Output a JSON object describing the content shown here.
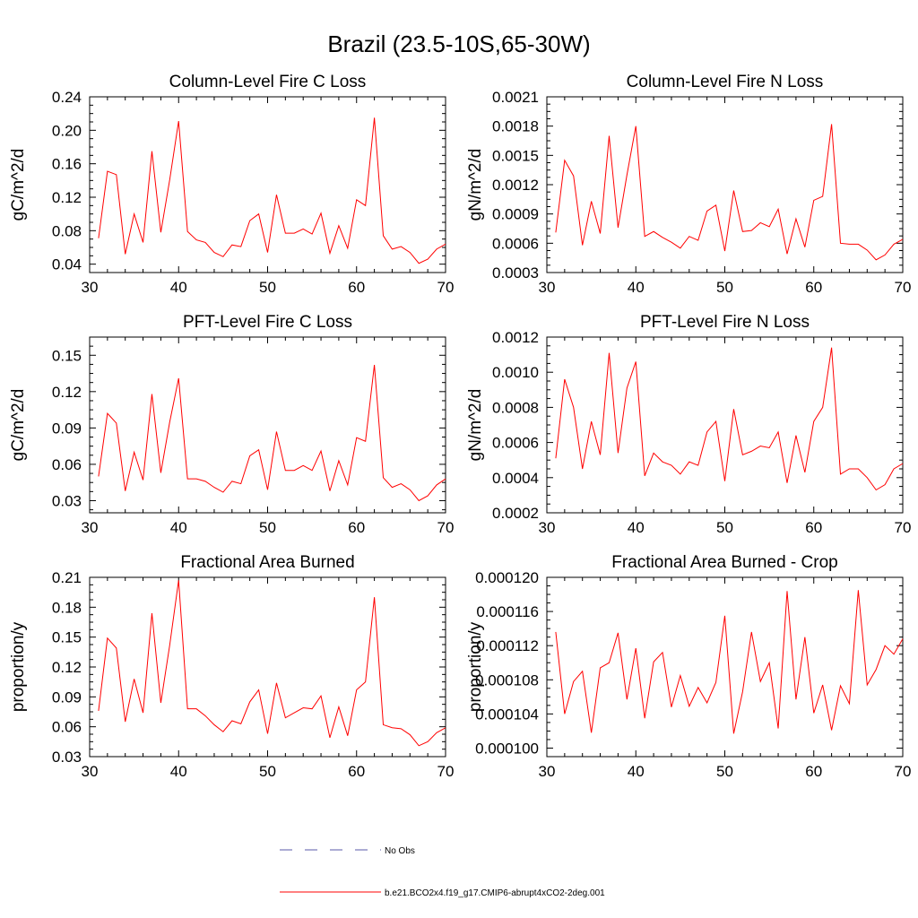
{
  "figure_title": "Brazil (23.5-10S,65-30W)",
  "colors": {
    "model": "#ff0000",
    "obs": "#5a5aa8",
    "axis": "#000000"
  },
  "legend": {
    "obs_label": "No Obs",
    "model_label": "b.e21.BCO2x4.f19_g17.CMIP6-abrupt4xCO2-2deg.001"
  },
  "chart_data": [
    {
      "type": "line",
      "title": "Column-Level Fire C Loss",
      "xlabel": "",
      "ylabel": "gC/m^2/d",
      "xlim": [
        30,
        70
      ],
      "ylim": [
        0.03,
        0.24
      ],
      "xticks": [
        30,
        40,
        50,
        60,
        70
      ],
      "yticks": [
        0.04,
        0.08,
        0.12,
        0.16,
        0.2,
        0.24
      ],
      "ytick_labels": [
        "0.04",
        "0.08",
        "0.12",
        "0.16",
        "0.20",
        "0.24"
      ],
      "series": [
        {
          "x": [
            31,
            32,
            33,
            34,
            35,
            36,
            37,
            38,
            39,
            40,
            41,
            42,
            43,
            44,
            45,
            46,
            47,
            48,
            49,
            50,
            51,
            52,
            53,
            54,
            55,
            56,
            57,
            58,
            59,
            60,
            61,
            62,
            63,
            64,
            65,
            66,
            67,
            68,
            69,
            70
          ],
          "values": [
            0.071,
            0.151,
            0.147,
            0.052,
            0.1,
            0.066,
            0.175,
            0.078,
            0.141,
            0.211,
            0.079,
            0.069,
            0.066,
            0.054,
            0.049,
            0.063,
            0.061,
            0.092,
            0.1,
            0.054,
            0.123,
            0.077,
            0.077,
            0.082,
            0.076,
            0.101,
            0.053,
            0.086,
            0.059,
            0.117,
            0.11,
            0.215,
            0.074,
            0.058,
            0.061,
            0.054,
            0.041,
            0.046,
            0.058,
            0.064
          ]
        }
      ]
    },
    {
      "type": "line",
      "title": "Column-Level Fire N Loss",
      "xlabel": "",
      "ylabel": "gN/m^2/d",
      "xlim": [
        30,
        70
      ],
      "ylim": [
        0.0003,
        0.0021
      ],
      "xticks": [
        30,
        40,
        50,
        60,
        70
      ],
      "yticks": [
        0.0003,
        0.0006,
        0.0009,
        0.0012,
        0.0015,
        0.0018,
        0.0021
      ],
      "ytick_labels": [
        "0.0003",
        "0.0006",
        "0.0009",
        "0.0012",
        "0.0015",
        "0.0018",
        "0.0021"
      ],
      "series": [
        {
          "x": [
            31,
            32,
            33,
            34,
            35,
            36,
            37,
            38,
            39,
            40,
            41,
            42,
            43,
            44,
            45,
            46,
            47,
            48,
            49,
            50,
            51,
            52,
            53,
            54,
            55,
            56,
            57,
            58,
            59,
            60,
            61,
            62,
            63,
            64,
            65,
            66,
            67,
            68,
            69,
            70
          ],
          "values": [
            0.00071,
            0.00145,
            0.00129,
            0.00058,
            0.00103,
            0.0007,
            0.0017,
            0.00076,
            0.0013,
            0.0018,
            0.00067,
            0.00072,
            0.00066,
            0.00061,
            0.00055,
            0.00067,
            0.00063,
            0.00093,
            0.00099,
            0.00052,
            0.00114,
            0.00072,
            0.00073,
            0.00081,
            0.00077,
            0.00095,
            0.00049,
            0.00085,
            0.00056,
            0.00104,
            0.00108,
            0.00182,
            0.0006,
            0.00059,
            0.00059,
            0.00053,
            0.00043,
            0.00048,
            0.00059,
            0.00064
          ]
        }
      ]
    },
    {
      "type": "line",
      "title": "PFT-Level Fire C Loss",
      "xlabel": "",
      "ylabel": "gC/m^2/d",
      "xlim": [
        30,
        70
      ],
      "ylim": [
        0.02,
        0.165
      ],
      "xticks": [
        30,
        40,
        50,
        60,
        70
      ],
      "yticks": [
        0.03,
        0.06,
        0.09,
        0.12,
        0.15
      ],
      "ytick_labels": [
        "0.03",
        "0.06",
        "0.09",
        "0.12",
        "0.15"
      ],
      "series": [
        {
          "x": [
            31,
            32,
            33,
            34,
            35,
            36,
            37,
            38,
            39,
            40,
            41,
            42,
            43,
            44,
            45,
            46,
            47,
            48,
            49,
            50,
            51,
            52,
            53,
            54,
            55,
            56,
            57,
            58,
            59,
            60,
            61,
            62,
            63,
            64,
            65,
            66,
            67,
            68,
            69,
            70
          ],
          "values": [
            0.05,
            0.102,
            0.094,
            0.038,
            0.07,
            0.047,
            0.118,
            0.053,
            0.095,
            0.131,
            0.048,
            0.048,
            0.046,
            0.041,
            0.037,
            0.046,
            0.044,
            0.067,
            0.072,
            0.039,
            0.087,
            0.055,
            0.055,
            0.059,
            0.055,
            0.071,
            0.038,
            0.063,
            0.043,
            0.082,
            0.079,
            0.142,
            0.049,
            0.041,
            0.044,
            0.039,
            0.03,
            0.034,
            0.043,
            0.048
          ]
        }
      ]
    },
    {
      "type": "line",
      "title": "PFT-Level Fire N Loss",
      "xlabel": "",
      "ylabel": "gN/m^2/d",
      "xlim": [
        30,
        70
      ],
      "ylim": [
        0.0002,
        0.0012
      ],
      "xticks": [
        30,
        40,
        50,
        60,
        70
      ],
      "yticks": [
        0.0002,
        0.0004,
        0.0006,
        0.0008,
        0.001,
        0.0012
      ],
      "ytick_labels": [
        "0.0002",
        "0.0004",
        "0.0006",
        "0.0008",
        "0.0010",
        "0.0012"
      ],
      "series": [
        {
          "x": [
            31,
            32,
            33,
            34,
            35,
            36,
            37,
            38,
            39,
            40,
            41,
            42,
            43,
            44,
            45,
            46,
            47,
            48,
            49,
            50,
            51,
            52,
            53,
            54,
            55,
            56,
            57,
            58,
            59,
            60,
            61,
            62,
            63,
            64,
            65,
            66,
            67,
            68,
            69,
            70
          ],
          "values": [
            0.00051,
            0.00096,
            0.0008,
            0.00045,
            0.00072,
            0.00053,
            0.00111,
            0.00054,
            0.00091,
            0.00106,
            0.00041,
            0.00054,
            0.00049,
            0.00047,
            0.00042,
            0.00049,
            0.00047,
            0.00066,
            0.00072,
            0.00038,
            0.00079,
            0.00053,
            0.00055,
            0.00058,
            0.00057,
            0.00066,
            0.00037,
            0.00064,
            0.00043,
            0.00072,
            0.0008,
            0.00114,
            0.00042,
            0.00045,
            0.00045,
            0.0004,
            0.00033,
            0.00036,
            0.00045,
            0.00048
          ]
        }
      ]
    },
    {
      "type": "line",
      "title": "Fractional Area Burned",
      "xlabel": "",
      "ylabel": "proportion/y",
      "xlim": [
        30,
        70
      ],
      "ylim": [
        0.03,
        0.21
      ],
      "xticks": [
        30,
        40,
        50,
        60,
        70
      ],
      "yticks": [
        0.03,
        0.06,
        0.09,
        0.12,
        0.15,
        0.18,
        0.21
      ],
      "ytick_labels": [
        "0.03",
        "0.06",
        "0.09",
        "0.12",
        "0.15",
        "0.18",
        "0.21"
      ],
      "series": [
        {
          "x": [
            31,
            32,
            33,
            34,
            35,
            36,
            37,
            38,
            39,
            40,
            41,
            42,
            43,
            44,
            45,
            46,
            47,
            48,
            49,
            50,
            51,
            52,
            53,
            54,
            55,
            56,
            57,
            58,
            59,
            60,
            61,
            62,
            63,
            64,
            65,
            66,
            67,
            68,
            69,
            70
          ],
          "values": [
            0.076,
            0.149,
            0.139,
            0.065,
            0.108,
            0.074,
            0.174,
            0.084,
            0.142,
            0.207,
            0.078,
            0.078,
            0.071,
            0.062,
            0.055,
            0.066,
            0.063,
            0.085,
            0.097,
            0.053,
            0.104,
            0.069,
            0.074,
            0.079,
            0.078,
            0.091,
            0.049,
            0.08,
            0.051,
            0.097,
            0.105,
            0.19,
            0.062,
            0.059,
            0.058,
            0.052,
            0.041,
            0.045,
            0.054,
            0.059
          ]
        }
      ]
    },
    {
      "type": "line",
      "title": "Fractional Area Burned - Crop",
      "xlabel": "",
      "ylabel": "proportion/y",
      "xlim": [
        30,
        70
      ],
      "ylim": [
        9.9e-05,
        0.00012
      ],
      "xticks": [
        30,
        40,
        50,
        60,
        70
      ],
      "yticks": [
        0.0001,
        0.000104,
        0.000108,
        0.000112,
        0.000116,
        0.00012
      ],
      "ytick_labels": [
        "0.000100",
        "0.000104",
        "0.000108",
        "0.000112",
        "0.000116",
        "0.000120"
      ],
      "series": [
        {
          "x": [
            31,
            32,
            33,
            34,
            35,
            36,
            37,
            38,
            39,
            40,
            41,
            42,
            43,
            44,
            45,
            46,
            47,
            48,
            49,
            50,
            51,
            52,
            53,
            54,
            55,
            56,
            57,
            58,
            59,
            60,
            61,
            62,
            63,
            64,
            65,
            66,
            67,
            68,
            69,
            70
          ],
          "values": [
            0.0001136,
            0.000104,
            0.0001078,
            0.000109,
            0.0001018,
            0.0001094,
            0.00011,
            0.0001135,
            0.0001057,
            0.0001117,
            0.0001035,
            0.0001101,
            0.0001112,
            0.0001048,
            0.0001085,
            0.0001049,
            0.0001071,
            0.0001053,
            0.0001077,
            0.0001155,
            0.0001017,
            0.0001066,
            0.0001136,
            0.0001078,
            0.00011,
            0.0001023,
            0.0001184,
            0.0001057,
            0.000113,
            0.0001041,
            0.0001074,
            0.0001021,
            0.0001073,
            0.0001052,
            0.0001185,
            0.0001074,
            0.0001092,
            0.000112,
            0.000111,
            0.0001128
          ]
        }
      ]
    }
  ]
}
